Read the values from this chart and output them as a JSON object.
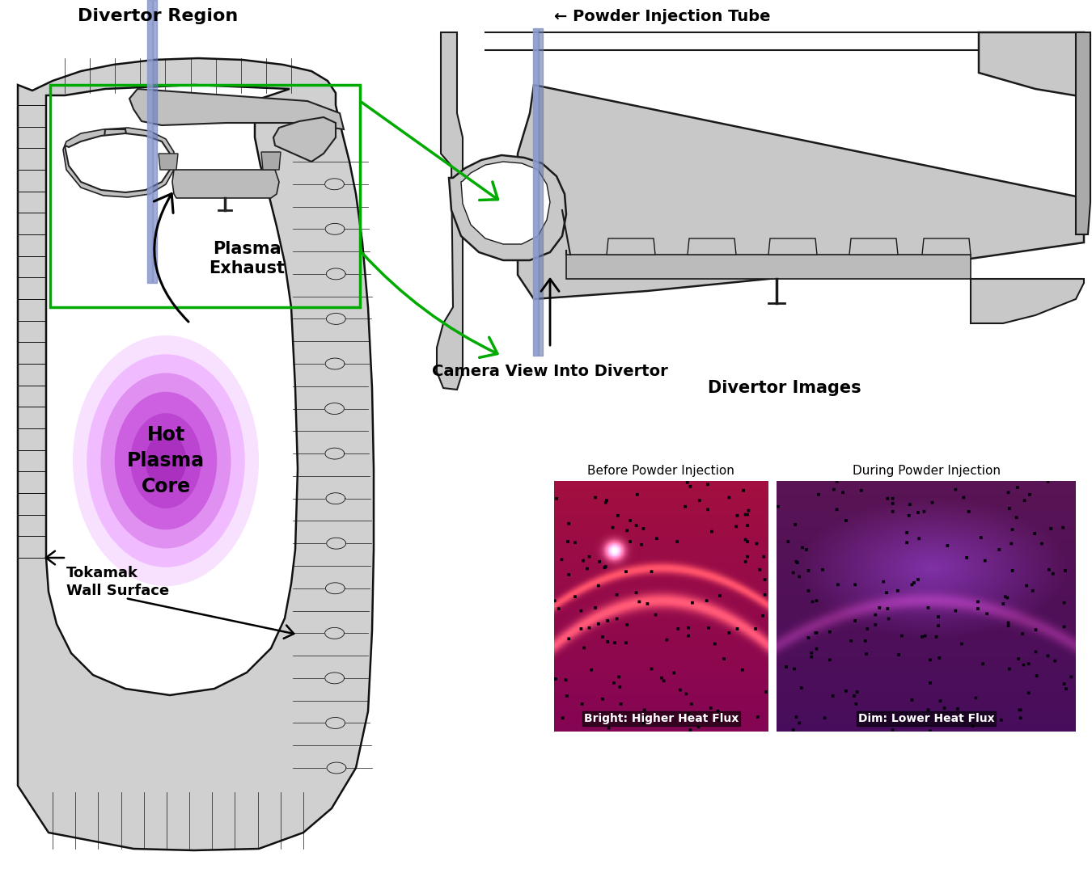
{
  "bg_color": "#ffffff",
  "divertor_region_label": "Divertor Region",
  "plasma_exhaust_label": "Plasma\nExhaust",
  "hot_plasma_label": "Hot\nPlasma\nCore",
  "tokamak_wall_label": "Tokamak\nWall Surface",
  "powder_injection_tube_label": "← Powder Injection Tube",
  "camera_view_label": "Camera View Into Divertor",
  "divertor_images_label": "Divertor Images",
  "before_label": "Before Powder Injection",
  "during_label": "During Powder Injection",
  "bright_label": "Bright: Higher Heat Flux",
  "dim_label": "Dim: Lower Heat Flux",
  "green_color": "#00aa00",
  "blue_tube_color": "#7799cc",
  "dark_color": "#111111",
  "wall_color": "#d0d0d0",
  "wall_dark": "#888888"
}
